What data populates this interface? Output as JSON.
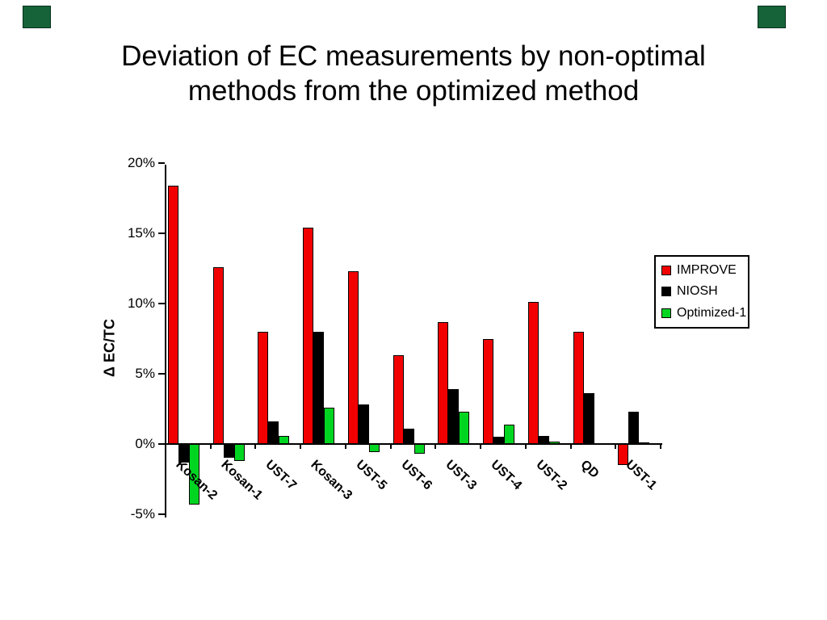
{
  "slide": {
    "title_line1": "Deviation of EC measurements by non-optimal",
    "title_line2": "methods from the optimized method",
    "corner_color": "#176339"
  },
  "chart_data": {
    "type": "bar",
    "title": "Deviation of EC measurements by non-optimal methods from the optimized method",
    "xlabel": "",
    "ylabel": "Δ EC/TC",
    "categories": [
      "Kosan-2",
      "Kosan-1",
      "UST-7",
      "Kosan-3",
      "UST-5",
      "UST-6",
      "UST-3",
      "UST-4",
      "UST-2",
      "QD",
      "UST-1"
    ],
    "series": [
      {
        "name": "IMPROVE",
        "color": "#f20000",
        "values": [
          18.4,
          12.6,
          8.0,
          15.4,
          12.3,
          6.3,
          8.7,
          7.5,
          10.1,
          8.0,
          -1.5
        ]
      },
      {
        "name": "NIOSH",
        "color": "#000000",
        "values": [
          -1.3,
          -1.0,
          1.6,
          8.0,
          2.8,
          1.1,
          3.9,
          0.5,
          0.6,
          3.6,
          2.3
        ]
      },
      {
        "name": "Optimized-1",
        "color": "#00d622",
        "values": [
          -4.3,
          -1.2,
          0.6,
          2.6,
          -0.6,
          -0.7,
          2.3,
          1.4,
          0.2,
          0.0,
          0.1
        ]
      }
    ],
    "y_ticks": [
      {
        "label": "20%",
        "value": 20
      },
      {
        "label": "15%",
        "value": 15
      },
      {
        "label": "10%",
        "value": 10
      },
      {
        "label": "5%",
        "value": 5
      },
      {
        "label": "0%",
        "value": 0
      },
      {
        "label": "-5%",
        "value": -5
      }
    ],
    "ylim": [
      -5,
      20
    ],
    "grid": false,
    "legend_position": "right",
    "units": "percent"
  }
}
